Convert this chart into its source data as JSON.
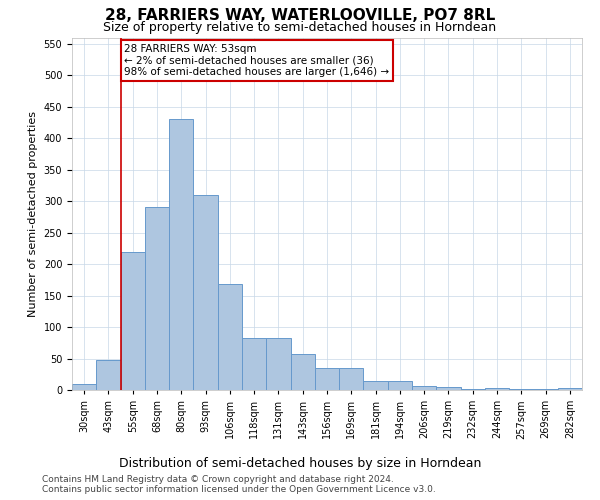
{
  "title": "28, FARRIERS WAY, WATERLOOVILLE, PO7 8RL",
  "subtitle": "Size of property relative to semi-detached houses in Horndean",
  "xlabel": "Distribution of semi-detached houses by size in Horndean",
  "ylabel": "Number of semi-detached properties",
  "bin_labels": [
    "30sqm",
    "43sqm",
    "55sqm",
    "68sqm",
    "80sqm",
    "93sqm",
    "106sqm",
    "118sqm",
    "131sqm",
    "143sqm",
    "156sqm",
    "169sqm",
    "181sqm",
    "194sqm",
    "206sqm",
    "219sqm",
    "232sqm",
    "244sqm",
    "257sqm",
    "269sqm",
    "282sqm"
  ],
  "bar_values": [
    10,
    48,
    220,
    290,
    430,
    310,
    168,
    82,
    82,
    57,
    35,
    35,
    15,
    15,
    7,
    5,
    2,
    3,
    2,
    2,
    3
  ],
  "bar_color": "#aec6e0",
  "bar_edge_color": "#6699cc",
  "property_line_index": 1.5,
  "annotation_text": "28 FARRIERS WAY: 53sqm\n← 2% of semi-detached houses are smaller (36)\n98% of semi-detached houses are larger (1,646) →",
  "annotation_box_color": "#ffffff",
  "annotation_box_edge": "#cc0000",
  "property_line_color": "#cc0000",
  "ylim": [
    0,
    560
  ],
  "yticks": [
    0,
    50,
    100,
    150,
    200,
    250,
    300,
    350,
    400,
    450,
    500,
    550
  ],
  "footer_line1": "Contains HM Land Registry data © Crown copyright and database right 2024.",
  "footer_line2": "Contains public sector information licensed under the Open Government Licence v3.0.",
  "background_color": "#ffffff",
  "grid_color": "#c8d8e8",
  "title_fontsize": 11,
  "subtitle_fontsize": 9,
  "xlabel_fontsize": 9,
  "ylabel_fontsize": 8,
  "tick_fontsize": 7,
  "annotation_fontsize": 7.5,
  "footer_fontsize": 6.5
}
